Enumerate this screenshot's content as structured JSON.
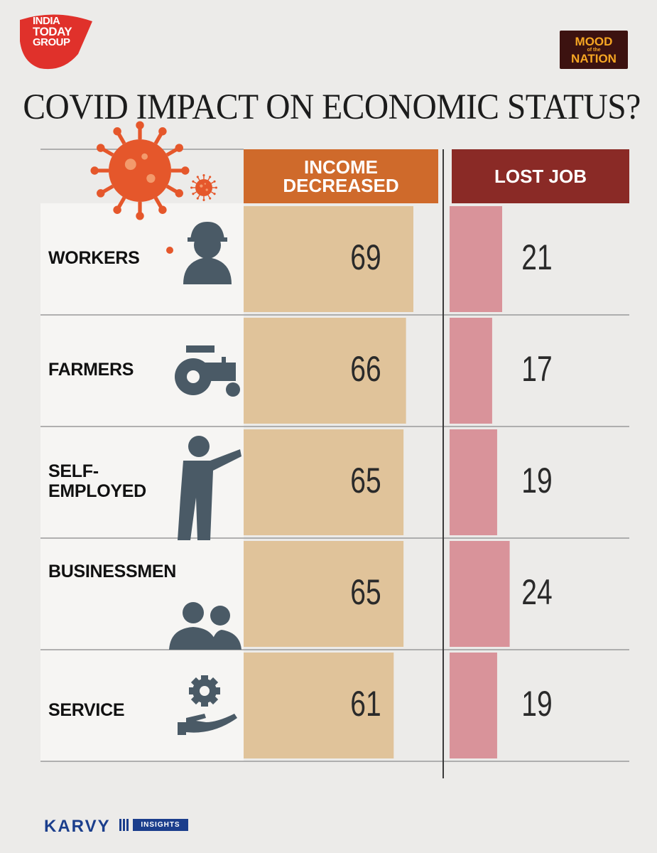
{
  "brand": {
    "logo_lines": [
      "INDIA",
      "TODAY",
      "GROUP"
    ],
    "badge_line1": "MOOD",
    "badge_small": "of the",
    "badge_line2": "NATION",
    "accent_red": "#e0312b",
    "badge_bg": "#3c1210",
    "badge_text": "#f6a623"
  },
  "title": "COVID IMPACT ON ECONOMIC STATUS?",
  "chart_data": {
    "type": "table",
    "columns": [
      "INCOME DECREASED",
      "LOST JOB"
    ],
    "categories": [
      "WORKERS",
      "FARMERS",
      "SELF-EMPLOYED",
      "BUSINESSMEN",
      "SERVICE"
    ],
    "category_icons": [
      "worker-helmet-icon",
      "tractor-icon",
      "leaning-man-icon",
      "businessmen-icon",
      "gear-hand-icon"
    ],
    "series": [
      {
        "name": "INCOME DECREASED",
        "values": [
          69,
          66,
          65,
          65,
          61
        ],
        "color": "#e0c39a"
      },
      {
        "name": "LOST JOB",
        "values": [
          21,
          17,
          19,
          24,
          19
        ],
        "color": "#d9939a"
      }
    ]
  },
  "labels": {
    "income_header": [
      "INCOME",
      "DECREASED"
    ],
    "lost_header": "LOST JOB",
    "row_labels": [
      [
        "WORKERS"
      ],
      [
        "FARMERS"
      ],
      [
        "SELF-",
        "EMPLOYED"
      ],
      [
        "BUSINESSMEN"
      ],
      [
        "SERVICE"
      ]
    ]
  },
  "footer": {
    "karvy": "KARVY",
    "insights": "INSIGHTS",
    "color": "#1b3e8c"
  }
}
